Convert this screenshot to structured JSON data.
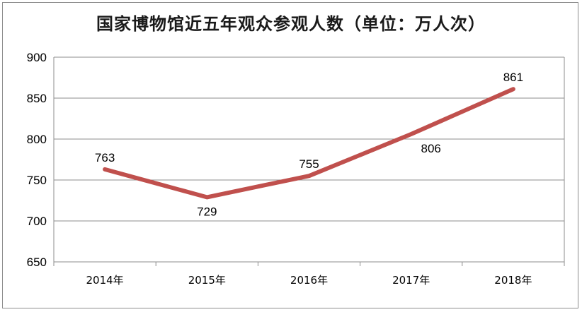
{
  "chart_data": {
    "type": "line",
    "title": "国家博物馆近五年观众参观人数（单位：万人次）",
    "categories": [
      "2014年",
      "2015年",
      "2016年",
      "2017年",
      "2018年"
    ],
    "series": [
      {
        "values": [
          763,
          729,
          755,
          806,
          861
        ],
        "color": "#c0504d"
      }
    ],
    "ylim": [
      650,
      900
    ],
    "yticks": [
      "650",
      "700",
      "750",
      "800",
      "850",
      "900"
    ],
    "data_labels": [
      "763",
      "729",
      "755",
      "806",
      "861"
    ],
    "grid": true,
    "legend": "none",
    "colors": {
      "line": "#c0504d",
      "grid": "#8c8c8c",
      "axis": "#8c8c8c"
    }
  }
}
